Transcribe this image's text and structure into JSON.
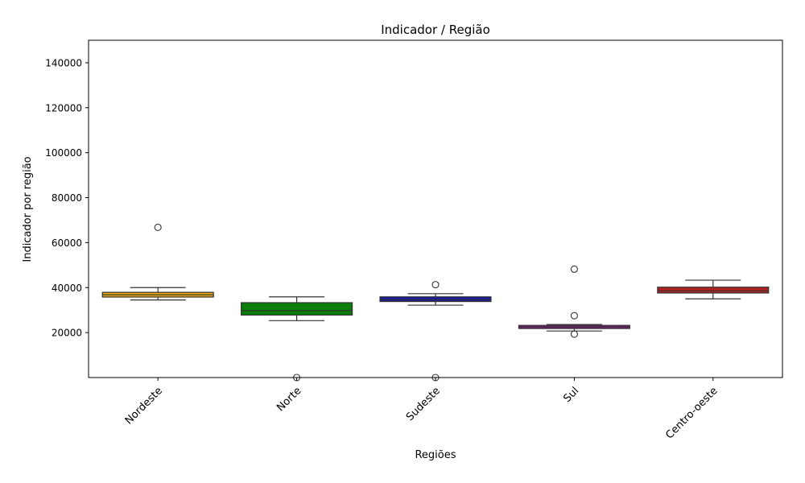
{
  "chart_data": {
    "type": "box",
    "title": "Indicador / Região",
    "xlabel": "Regiões",
    "ylabel": "Indicador por região",
    "ylim": [
      0,
      150000
    ],
    "yticks": [
      20000,
      40000,
      60000,
      80000,
      100000,
      120000,
      140000
    ],
    "ytick_labels": [
      "20000",
      "40000",
      "60000",
      "80000",
      "100000",
      "120000",
      "140000"
    ],
    "grid": false,
    "categories": [
      "Nordeste",
      "Norte",
      "Sudeste",
      "Sul",
      "Centro-oeste"
    ],
    "boxes": [
      {
        "category": "Nordeste",
        "color": "#e6a817",
        "whisker_low": 34500,
        "q1": 35800,
        "median": 36800,
        "q3": 37900,
        "whisker_high": 40000,
        "outliers": [
          66800
        ]
      },
      {
        "category": "Norte",
        "color": "#0a7d0a",
        "whisker_low": 25300,
        "q1": 27800,
        "median": 29800,
        "q3": 33300,
        "whisker_high": 35900,
        "outliers": [
          0
        ]
      },
      {
        "category": "Sudeste",
        "color": "#1a1aa0",
        "whisker_low": 32200,
        "q1": 33800,
        "median": 34600,
        "q3": 35900,
        "whisker_high": 37300,
        "outliers": [
          41300,
          0
        ]
      },
      {
        "category": "Sul",
        "color": "#8b1a8b",
        "whisker_low": 20700,
        "q1": 21800,
        "median": 22500,
        "q3": 23200,
        "whisker_high": 23600,
        "outliers": [
          48200,
          27500,
          19300
        ]
      },
      {
        "category": "Centro-oeste",
        "color": "#b22222",
        "whisker_low": 35000,
        "q1": 37600,
        "median": 38600,
        "q3": 40200,
        "whisker_high": 43300,
        "outliers": []
      }
    ]
  }
}
